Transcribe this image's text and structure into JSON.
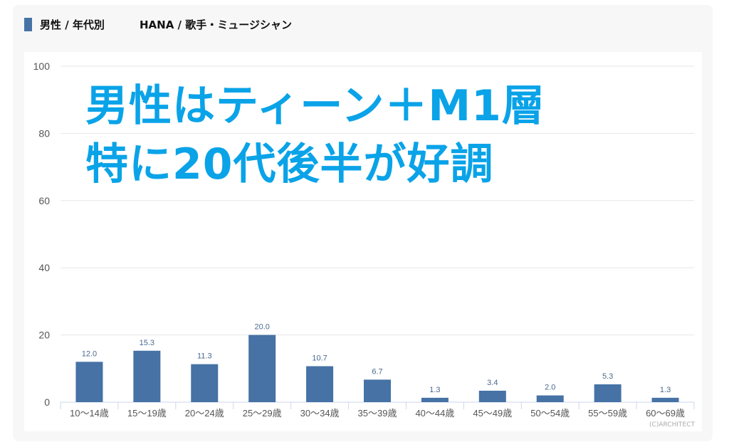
{
  "header": {
    "title": "男性 / 年代別",
    "subtitle": "HANA / 歌手・ミュージシャン"
  },
  "overlay": {
    "line1": "男性はティーン＋M1層",
    "line2": "特に20代後半が好調"
  },
  "credit": "(C)ARCHITECT",
  "colors": {
    "bar": "#4672a5",
    "overlay": "#0aa3e8",
    "accent": "#4672a5"
  },
  "chart_data": {
    "type": "bar",
    "categories": [
      "10〜14歳",
      "15〜19歳",
      "20〜24歳",
      "25〜29歳",
      "30〜34歳",
      "35〜39歳",
      "40〜44歳",
      "45〜49歳",
      "50〜54歳",
      "55〜59歳",
      "60〜69歳"
    ],
    "values": [
      12.0,
      15.3,
      11.3,
      20.0,
      10.7,
      6.7,
      1.3,
      3.4,
      2.0,
      5.3,
      1.3
    ],
    "data_labels": [
      "12.0",
      "15.3",
      "11.3",
      "20.0",
      "10.7",
      "6.7",
      "1.3",
      "3.4",
      "2.0",
      "5.3",
      "1.3"
    ],
    "ylim": [
      0,
      100
    ],
    "yticks": [
      "0",
      "20",
      "40",
      "60",
      "80",
      "100"
    ],
    "grid": true,
    "legend": "none"
  }
}
